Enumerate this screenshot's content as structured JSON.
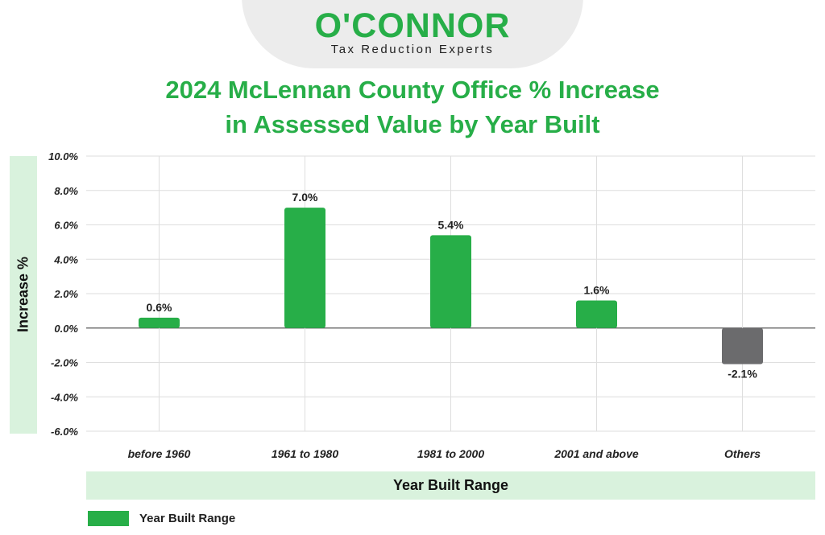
{
  "logo": {
    "wordmark": "O'CONNOR",
    "tagline": "Tax Reduction Experts"
  },
  "colors": {
    "brand_green": "#27ae48",
    "positive_bar": "#27ae48",
    "negative_bar": "#6b6b6d",
    "label_band": "#d9f2dd"
  },
  "chart_data": {
    "type": "bar",
    "title_line1": "2024 McLennan County Office % Increase",
    "title_line2": "in Assessed Value by Year Built",
    "xlabel": "Year Built Range",
    "ylabel": "Increase %",
    "categories": [
      "before 1960",
      "1961 to 1980",
      "1981 to 2000",
      "2001 and above",
      "Others"
    ],
    "values": [
      0.6,
      7.0,
      5.4,
      1.6,
      -2.1
    ],
    "value_labels": [
      "0.6%",
      "7.0%",
      "5.4%",
      "1.6%",
      "-2.1%"
    ],
    "ylim": [
      -6.0,
      10.0
    ],
    "yticks": [
      10,
      8,
      6,
      4,
      2,
      0,
      -2,
      -4,
      -6
    ],
    "ytick_labels": [
      "10.0%",
      "8.0%",
      "6.0%",
      "4.0%",
      "2.0%",
      "0.0%",
      "-2.0%",
      "-4.0%",
      "-6.0%"
    ],
    "grid": true,
    "legend": {
      "position": "bottom-left",
      "entries": [
        "Year Built Range"
      ]
    }
  }
}
